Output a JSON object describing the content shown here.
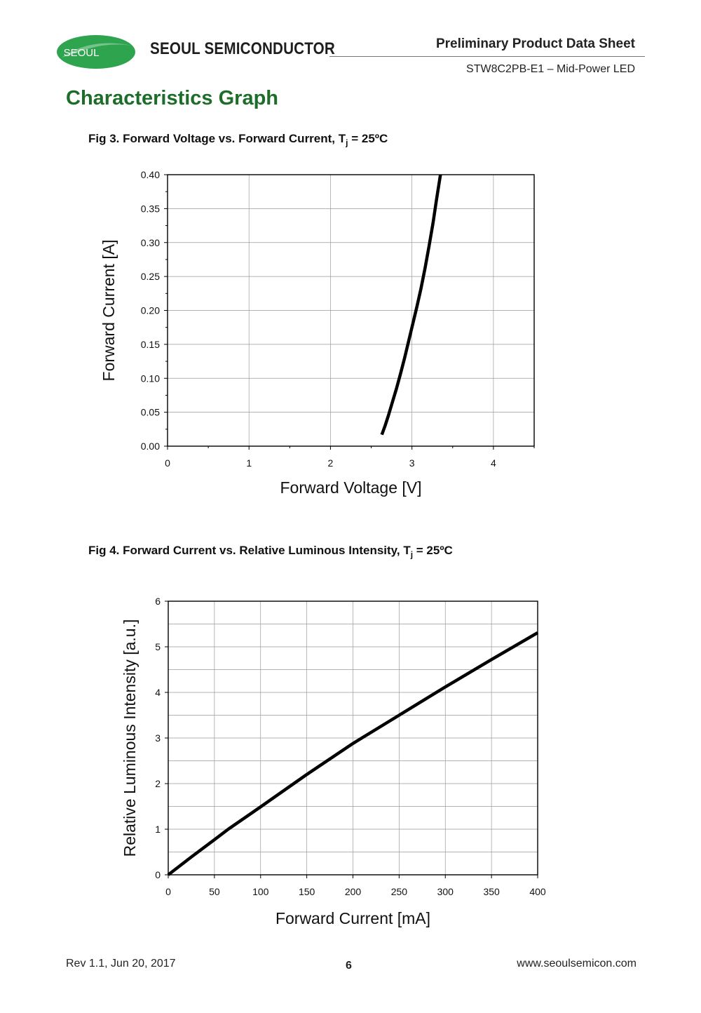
{
  "header": {
    "logo_text": "SEOUL",
    "company": "SEOUL SEMICONDUCTOR",
    "doc_title": "Preliminary Product Data Sheet",
    "doc_subtitle": "STW8C2PB-E1 – Mid-Power LED"
  },
  "section_title": "Characteristics Graph",
  "figures": {
    "fig3": {
      "title_prefix": "Fig 3. Forward Voltage vs. Forward Current, T",
      "title_sub": "j",
      "title_suffix": " = 25ºC"
    },
    "fig4": {
      "title_prefix": "Fig 4. Forward Current vs. Relative Luminous Intensity, T",
      "title_sub": "j",
      "title_suffix": " = 25ºC"
    }
  },
  "colors": {
    "accent_green": "#1d6d2a",
    "logo_green": "#2ea44f",
    "curve": "#000000",
    "grid": "#9a9a9a"
  },
  "chart_data": [
    {
      "type": "line",
      "xlabel": "Forward Voltage [V]",
      "ylabel": "Forward Current [A]",
      "xlim": [
        0,
        4.5
      ],
      "ylim": [
        0,
        0.4
      ],
      "x_ticks": [
        0,
        1,
        2,
        3,
        4
      ],
      "x_tick_labels": [
        "0",
        "1",
        "2",
        "3",
        "4"
      ],
      "y_ticks": [
        0,
        0.05,
        0.1,
        0.15,
        0.2,
        0.25,
        0.3,
        0.35,
        0.4
      ],
      "y_tick_labels": [
        "0.00",
        "0.05",
        "0.10",
        "0.15",
        "0.20",
        "0.25",
        "0.30",
        "0.35",
        "0.40"
      ],
      "x_grid": [
        0,
        1,
        2,
        3,
        4
      ],
      "y_grid": [
        0,
        0.05,
        0.1,
        0.15,
        0.2,
        0.25,
        0.3,
        0.35,
        0.4
      ],
      "x_minor_ticks": [
        0.5,
        1.5,
        2.5,
        3.5,
        4.5
      ],
      "y_minor_ticks": [
        0.025,
        0.075,
        0.125,
        0.175,
        0.225,
        0.275,
        0.325,
        0.375
      ],
      "grid": true,
      "series": [
        {
          "x": [
            2.63,
            2.67,
            2.71,
            2.76,
            2.81,
            2.86,
            2.91,
            2.96,
            3.01,
            3.06,
            3.11,
            3.16,
            3.21,
            3.26,
            3.3,
            3.35
          ],
          "y": [
            0.017,
            0.03,
            0.045,
            0.065,
            0.085,
            0.107,
            0.13,
            0.155,
            0.18,
            0.205,
            0.232,
            0.262,
            0.295,
            0.33,
            0.362,
            0.4
          ]
        }
      ]
    },
    {
      "type": "line",
      "xlabel": "Forward Current [mA]",
      "ylabel": "Relative Luminous Intensity [a.u.]",
      "xlim": [
        0,
        400
      ],
      "ylim": [
        0,
        6
      ],
      "x_ticks": [
        0,
        50,
        100,
        150,
        200,
        250,
        300,
        350,
        400
      ],
      "x_tick_labels": [
        "0",
        "50",
        "100",
        "150",
        "200",
        "250",
        "300",
        "350",
        "400"
      ],
      "y_ticks": [
        0,
        1,
        2,
        3,
        4,
        5,
        6
      ],
      "y_tick_labels": [
        "0",
        "1",
        "2",
        "3",
        "4",
        "5",
        "6"
      ],
      "x_grid": [
        0,
        50,
        100,
        150,
        200,
        250,
        300,
        350,
        400
      ],
      "y_grid": [
        0,
        0.5,
        1,
        1.5,
        2,
        2.5,
        3,
        3.5,
        4,
        4.5,
        5,
        5.5,
        6
      ],
      "x_minor_ticks": [],
      "y_minor_ticks": [],
      "grid": true,
      "series": [
        {
          "x": [
            0,
            25,
            50,
            65,
            100,
            150,
            200,
            250,
            300,
            350,
            400
          ],
          "y": [
            0,
            0.39,
            0.77,
            1.0,
            1.49,
            2.2,
            2.88,
            3.5,
            4.12,
            4.72,
            5.31
          ]
        }
      ]
    }
  ],
  "footer": {
    "revision": "Rev 1.1, Jun 20, 2017",
    "page_number": "6",
    "website": "www.seoulsemicon.com"
  }
}
